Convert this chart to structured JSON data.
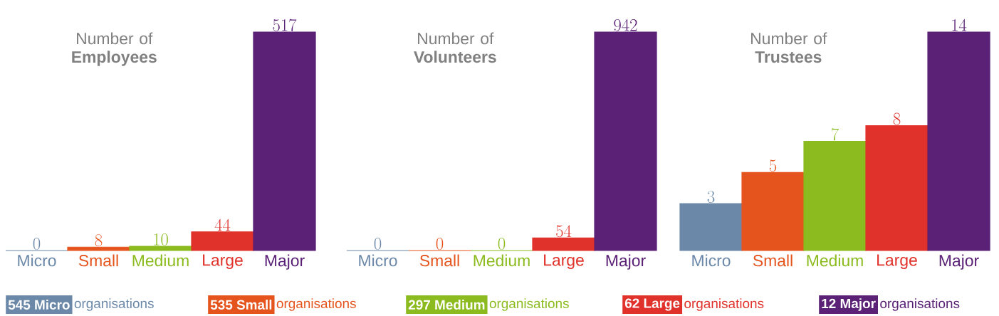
{
  "chart_data": [
    {
      "type": "bar",
      "title": "Number of **Employees**",
      "categories": [
        "Micro",
        "Small",
        "Medium",
        "Large",
        "Major"
      ],
      "values": [
        0,
        8,
        10,
        44,
        517
      ],
      "colors": [
        "#6b88a8",
        "#e6541e",
        "#8bbb1e",
        "#e0312a",
        "#5a2176"
      ],
      "data_labels": true
    },
    {
      "type": "bar",
      "title": "Number of **Volunteers**",
      "categories": [
        "Micro",
        "Small",
        "Medium",
        "Large",
        "Major"
      ],
      "values": [
        0,
        0,
        0,
        54,
        942
      ],
      "colors": [
        "#6b88a8",
        "#e6541e",
        "#8bbb1e",
        "#e0312a",
        "#5a2176"
      ],
      "data_labels": true
    },
    {
      "type": "bar",
      "title": "Number of **Trustees**",
      "categories": [
        "Micro",
        "Small",
        "Medium",
        "Large",
        "Major"
      ],
      "values": [
        3,
        5,
        7,
        8,
        14
      ],
      "colors": [
        "#6b88a8",
        "#e6541e",
        "#8bbb1e",
        "#e0312a",
        "#5a2176"
      ],
      "data_labels": true
    },
    {
      "type": "other",
      "annotations": [
        "545 Micro",
        "organisations",
        "535 Small",
        "organisations",
        "297 Medium",
        "organisations",
        "62 Large",
        "organisations",
        "12 Major",
        "organisations"
      ],
      "colors": [
        "#6b88a8",
        "#e6541e",
        "#8bbb1e",
        "#e0312a",
        "#5a2176"
      ]
    }
  ]
}
